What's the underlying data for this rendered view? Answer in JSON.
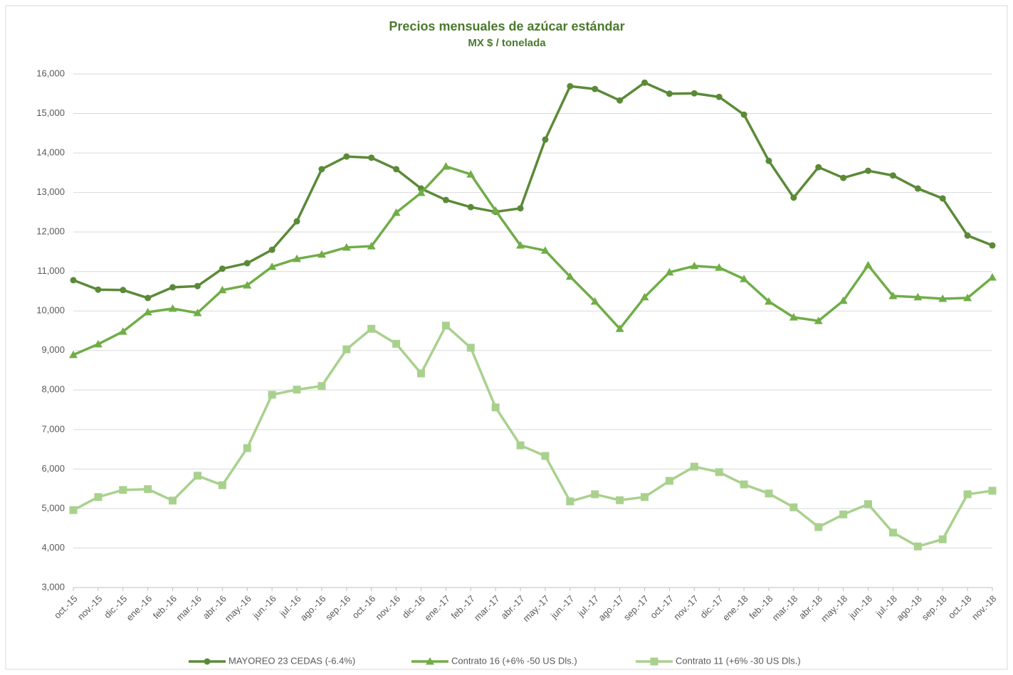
{
  "chart_data": {
    "type": "line",
    "title": "Precios mensuales de azúcar estándar",
    "subtitle": "MX $ / tonelada",
    "categories": [
      "oct.-15",
      "nov.-15",
      "dic.-15",
      "ene.-16",
      "feb.-16",
      "mar.-16",
      "abr.-16",
      "may.-16",
      "jun.-16",
      "jul.-16",
      "ago.-16",
      "sep.-16",
      "oct.-16",
      "nov.-16",
      "dic.-16",
      "ene.-17",
      "feb.-17",
      "mar.-17",
      "abr.-17",
      "may.-17",
      "jun.-17",
      "jul.-17",
      "ago.-17",
      "sep.-17",
      "oct.-17",
      "nov.-17",
      "dic.-17",
      "ene.-18",
      "feb.-18",
      "mar.-18",
      "abr.-18",
      "may.-18",
      "jun.-18",
      "jul.-18",
      "ago.-18",
      "sep.-18",
      "oct.-18",
      "nov.-18"
    ],
    "series": [
      {
        "name": "MAYOREO 23 CEDAS (-6.4%)",
        "color": "#5b8a37",
        "marker": "circle",
        "values": [
          10780,
          10540,
          10530,
          10330,
          10600,
          10630,
          11070,
          11210,
          11550,
          12270,
          13590,
          13910,
          13880,
          13590,
          13100,
          12810,
          12630,
          12510,
          12600,
          14340,
          15690,
          15620,
          15330,
          15780,
          15500,
          15510,
          15420,
          14970,
          13800,
          12870,
          13640,
          13370,
          13550,
          13430,
          13100,
          12850,
          11910,
          11660
        ]
      },
      {
        "name": "Contrato 16 (+6% -50 US Dls.)",
        "color": "#70ad47",
        "marker": "triangle",
        "values": [
          8890,
          9160,
          9480,
          9970,
          10060,
          9950,
          10530,
          10650,
          11120,
          11320,
          11430,
          11610,
          11640,
          12490,
          12990,
          13660,
          13460,
          12540,
          11660,
          11530,
          10870,
          10240,
          9550,
          10350,
          10980,
          11140,
          11100,
          10810,
          10240,
          9840,
          9750,
          10260,
          11160,
          10380,
          10350,
          10310,
          10330,
          10850
        ]
      },
      {
        "name": "Contrato 11 (+6% -30 US Dls.)",
        "color": "#a9d18e",
        "marker": "square",
        "values": [
          4960,
          5290,
          5470,
          5490,
          5200,
          5830,
          5590,
          6530,
          7880,
          8010,
          8100,
          9030,
          9550,
          9170,
          8420,
          9630,
          9070,
          7560,
          6600,
          6330,
          5180,
          5360,
          5210,
          5290,
          5700,
          6060,
          5920,
          5610,
          5380,
          5030,
          4530,
          4850,
          5110,
          4390,
          4040,
          4220,
          5360,
          5450
        ]
      }
    ],
    "ylim": [
      3000,
      16000
    ],
    "yticks": [
      {
        "value": 3000,
        "label": "3,000"
      },
      {
        "value": 4000,
        "label": "4,000"
      },
      {
        "value": 5000,
        "label": "5,000"
      },
      {
        "value": 6000,
        "label": "6,000"
      },
      {
        "value": 7000,
        "label": "7,000"
      },
      {
        "value": 8000,
        "label": "8,000"
      },
      {
        "value": 9000,
        "label": "9,000"
      },
      {
        "value": 10000,
        "label": "10,000"
      },
      {
        "value": 11000,
        "label": "11,000"
      },
      {
        "value": 12000,
        "label": "12,000"
      },
      {
        "value": 13000,
        "label": "13,000"
      },
      {
        "value": 14000,
        "label": "14,000"
      },
      {
        "value": 15000,
        "label": "15,000"
      },
      {
        "value": 16000,
        "label": "16,000"
      }
    ],
    "grid": true,
    "legend": "bottom"
  }
}
